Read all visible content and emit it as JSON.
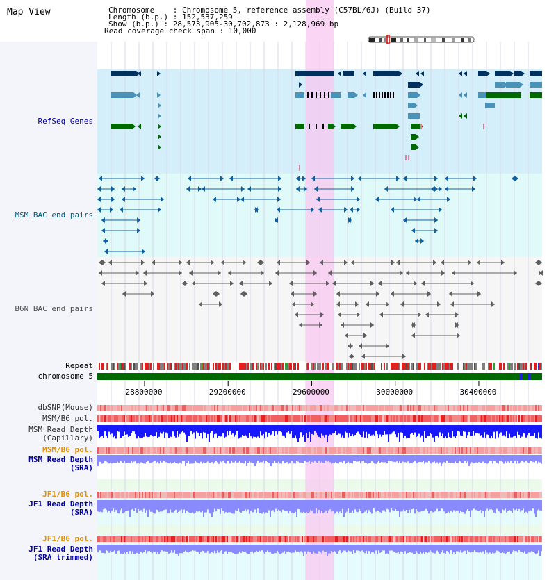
{
  "title": "Map View",
  "info": {
    "chromosome": "Chromosome    : Chromosome 5, reference assembly (C57BL/6J) (Build 37)",
    "length": "Length (b.p.) : 152,537,259",
    "show": "Show (b.p.) : 28,573,905-30,702,873 : 2,128,969 bp",
    "coverage": "Read coverage check span : 10,000"
  },
  "tracks": {
    "refseq": "RefSeq Genes",
    "msm_bac": "MSM BAC end pairs",
    "b6n_bac": "B6N BAC end pairs",
    "repeat": "Repeat",
    "chromosome": "chromosome 5",
    "dbsnp": "dbSNP(Mouse)",
    "msm_b6_pol": "MSM/B6 pol.",
    "msm_read_depth_cap": "MSM Read Depth\n(Capillary)",
    "msm_b6_pol2": "MSM/B6 pol.",
    "msm_read_depth_sra": "MSM Read Depth\n(SRA)",
    "jf1_b6_pol": "JF1/B6 pol.",
    "jf1_read_depth_sra": "JF1 Read Depth\n(SRA)",
    "jf1_b6_pol2": "JF1/B6 pol.",
    "jf1_read_depth_trim": "JF1 Read Depth\n(SRA trimmed)"
  },
  "axis": {
    "ticks": [
      "28800000",
      "29200000",
      "29600000",
      "30000000",
      "30400000"
    ],
    "tick_values": [
      28800000,
      29200000,
      29600000,
      30000000,
      30400000
    ],
    "start": 28573905,
    "end": 30702873
  },
  "colors": {
    "refseq_bg": "#d4eefa",
    "bac_bg": "#e0fafa",
    "highlight": "#f8c8f0",
    "gene_dark": "#00305e",
    "gene_mid": "#4a92b8",
    "gene_green": "#006800",
    "chrom_green": "#006800",
    "msm_blue": "#1060a0",
    "b6n_gray": "#606060",
    "depth_blue": "#1818ff",
    "depth_light": "#8a8aff",
    "pol_label": "#e09000",
    "label_blue": "#0000a0",
    "label_teal": "#006080"
  }
}
